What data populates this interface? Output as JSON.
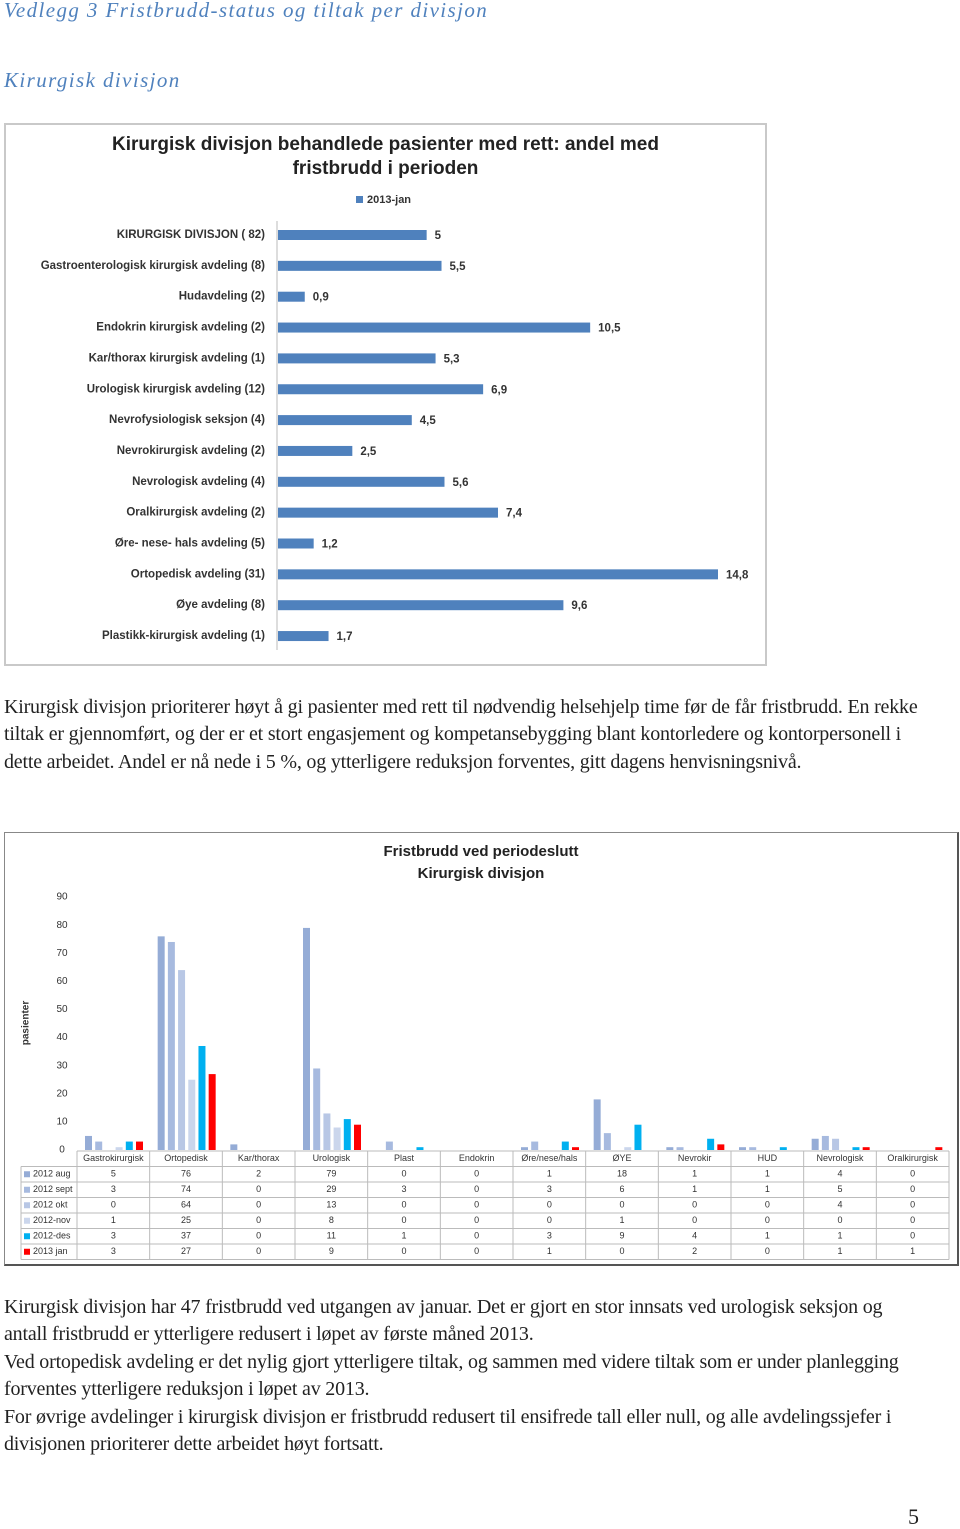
{
  "header": {
    "title": "Vedlegg 3 Fristbrudd-status og tiltak per divisjon",
    "subtitle": "Kirurgisk divisjon"
  },
  "paragraphs": [
    "Kirurgisk divisjon prioriterer høyt å gi pasienter med rett til nødvendig helsehjelp time før de får fristbrudd. En rekke tiltak er gjennomført, og der er et stort engasjement og kompetansebygging blant kontorledere og kontorpersonell i dette arbeidet. Andel er nå nede i 5 %, og ytterligere reduksjon forventes, gitt dagens henvisningsnivå.",
    "Kirurgisk divisjon har 47 fristbrudd ved utgangen av januar. Det er gjort en stor innsats ved urologisk seksjon og antall fristbrudd er ytterligere redusert i løpet av første måned 2013.",
    "Ved ortopedisk avdeling er det nylig gjort ytterligere tiltak, og sammen med videre tiltak som er under planlegging forventes ytterligere reduksjon i løpet av 2013.",
    "For øvrige avdelinger i kirurgisk divisjon er fristbrudd redusert til ensifrede tall eller null, og alle avdelingssjefer i divisjonen prioriterer dette arbeidet høyt fortsatt."
  ],
  "page_number": 5,
  "chart_data": [
    {
      "type": "hbar",
      "title": "Kirurgisk divisjon behandlede pasienter med rett: andel med fristbrudd i perioden",
      "categories": [
        "KIRURGISK DIVISJON ( 82)",
        "Gastroenterologisk kirurgisk avdeling (8)",
        "Hudavdeling (2)",
        "Endokrin kirurgisk avdeling (2)",
        "Kar/thorax kirurgisk avdeling (1)",
        "Urologisk kirurgisk avdeling (12)",
        "Nevrofysiologisk seksjon (4)",
        "Nevrokirurgisk avdeling (2)",
        "Nevrologisk avdeling (4)",
        "Oralkirurgisk avdeling (2)",
        "Øre- nese- hals avdeling (5)",
        "Ortopedisk avdeling (31)",
        "Øye avdeling (8)",
        "Plastikk-kirurgisk avdeling (1)"
      ],
      "series": [
        {
          "name": "2013-jan",
          "color": "#4f81bd",
          "values": [
            5,
            5.5,
            0.9,
            10.5,
            5.3,
            6.9,
            4.5,
            2.5,
            5.6,
            7.4,
            1.2,
            14.8,
            9.6,
            1.7
          ],
          "value_labels": [
            "5",
            "5,5",
            "0,9",
            "10,5",
            "5,3",
            "6,9",
            "4,5",
            "2,5",
            "5,6",
            "7,4",
            "1,2",
            "14,8",
            "9,6",
            "1,7"
          ]
        }
      ]
    },
    {
      "type": "bar",
      "title": "Fristbrudd ved periodeslutt",
      "subtitle": "Kirurgisk divisjon",
      "ylabel": "pasienter",
      "categories": [
        "Gastrokirurgisk",
        "Ortopedisk",
        "Kar/thorax",
        "Urologisk",
        "Plast",
        "Endokrin",
        "Øre/nese/hals",
        "ØYE",
        "Nevrokir",
        "HUD",
        "Nevrologisk",
        "Oralkirurgisk"
      ],
      "series": [
        {
          "name": "2012 aug",
          "color": "#95acd6",
          "values": [
            5,
            76,
            2,
            79,
            0,
            0,
            1,
            18,
            1,
            1,
            4,
            0
          ]
        },
        {
          "name": "2012 sept",
          "color": "#a7badf",
          "values": [
            3,
            74,
            0,
            29,
            3,
            0,
            3,
            6,
            1,
            1,
            5,
            0
          ]
        },
        {
          "name": "2012 okt",
          "color": "#b8c7e5",
          "values": [
            0,
            64,
            0,
            13,
            0,
            0,
            0,
            0,
            0,
            0,
            4,
            0
          ]
        },
        {
          "name": "2012-nov",
          "color": "#cbd6ec",
          "values": [
            1,
            25,
            0,
            8,
            0,
            0,
            0,
            1,
            0,
            0,
            0,
            0
          ]
        },
        {
          "name": "2012-des",
          "color": "#00b0f0",
          "values": [
            3,
            37,
            0,
            11,
            1,
            0,
            3,
            9,
            4,
            1,
            1,
            0
          ]
        },
        {
          "name": "2013 jan",
          "color": "#ff0000",
          "values": [
            3,
            27,
            0,
            9,
            0,
            0,
            1,
            0,
            2,
            0,
            1,
            1
          ]
        }
      ],
      "ylim": [
        0,
        90
      ],
      "yticks": [
        0,
        10,
        20,
        30,
        40,
        50,
        60,
        70,
        80,
        90
      ],
      "data_table": true
    }
  ]
}
